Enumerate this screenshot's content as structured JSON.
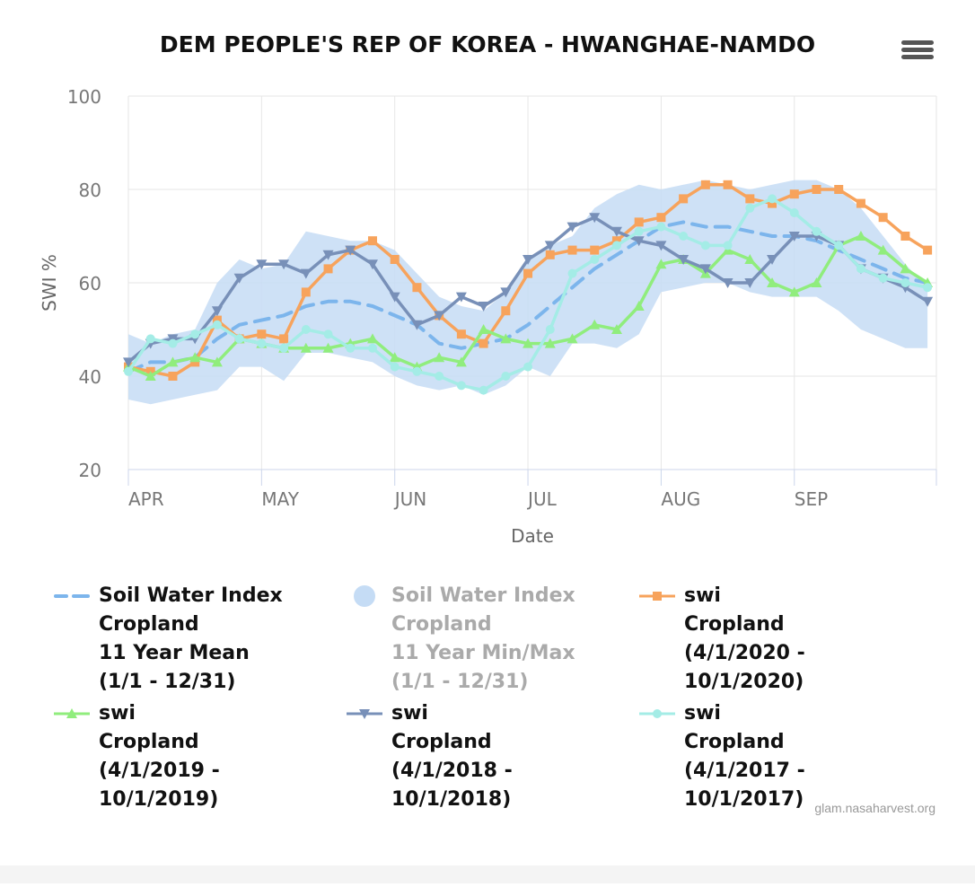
{
  "chart_data": {
    "type": "line",
    "title": "DEM PEOPLE'S REP OF KOREA - HWANGHAE-NAMDO",
    "xlabel": "Date",
    "ylabel": "SWI %",
    "ylim": [
      20,
      100
    ],
    "yticks": [
      "20",
      "40",
      "60",
      "80",
      "100"
    ],
    "xlim": [
      0,
      182
    ],
    "x_ticks": [
      {
        "x": 0,
        "label": "APR"
      },
      {
        "x": 30,
        "label": "MAY"
      },
      {
        "x": 60,
        "label": "JUN"
      },
      {
        "x": 90,
        "label": "JUL"
      },
      {
        "x": 120,
        "label": "AUG"
      },
      {
        "x": 150,
        "label": "SEP"
      }
    ],
    "grid": true,
    "legend_position": "bottom",
    "x": [
      0,
      5,
      10,
      15,
      20,
      25,
      30,
      35,
      40,
      45,
      50,
      55,
      60,
      65,
      70,
      75,
      80,
      85,
      90,
      95,
      100,
      105,
      110,
      115,
      120,
      125,
      130,
      135,
      140,
      145,
      150,
      155,
      160,
      165,
      170,
      175,
      180
    ],
    "band": {
      "name": "Soil Water Index\nCropland\n11 Year Min/Max\n(1/1 - 12/31)",
      "color": "#c5dcf5",
      "upper": [
        49,
        47,
        49,
        50,
        60,
        65,
        63,
        64,
        71,
        70,
        69,
        69,
        67,
        62,
        57,
        55,
        54,
        58,
        65,
        68,
        70,
        76,
        79,
        81,
        80,
        81,
        82,
        81,
        80,
        81,
        82,
        82,
        80,
        76,
        70,
        64,
        59
      ],
      "lower": [
        35,
        34,
        35,
        36,
        37,
        42,
        42,
        39,
        45,
        45,
        44,
        43,
        40,
        38,
        37,
        38,
        36,
        38,
        42,
        40,
        47,
        47,
        46,
        49,
        58,
        59,
        60,
        60,
        58,
        57,
        57,
        57,
        54,
        50,
        48,
        46,
        46
      ]
    },
    "series": [
      {
        "name": "Soil Water Index\nCropland\n11 Year Mean\n(1/1 - 12/31)",
        "color": "#7cb5ec",
        "dash": true,
        "marker": "none",
        "values": [
          41,
          43,
          43,
          44,
          48,
          51,
          52,
          53,
          55,
          56,
          56,
          55,
          53,
          51,
          47,
          46,
          47,
          48,
          51,
          55,
          59,
          63,
          66,
          69,
          72,
          73,
          72,
          72,
          71,
          70,
          70,
          69,
          67,
          65,
          63,
          61,
          60
        ]
      },
      {
        "name": "swi\nCropland\n(4/1/2020 - 10/1/2020)",
        "color": "#f7a35c",
        "dash": false,
        "marker": "square",
        "values": [
          42,
          41,
          40,
          43,
          52,
          48,
          49,
          48,
          58,
          63,
          67,
          69,
          65,
          59,
          53,
          49,
          47,
          54,
          62,
          66,
          67,
          67,
          69,
          73,
          74,
          78,
          81,
          81,
          78,
          77,
          79,
          80,
          80,
          77,
          74,
          70,
          67
        ]
      },
      {
        "name": "swi\nCropland\n(4/1/2019 - 10/1/2019)",
        "color": "#90ed7d",
        "dash": false,
        "marker": "triangle",
        "values": [
          42,
          40,
          43,
          44,
          43,
          48,
          47,
          46,
          46,
          46,
          47,
          48,
          44,
          42,
          44,
          43,
          50,
          48,
          47,
          47,
          48,
          51,
          50,
          55,
          64,
          65,
          62,
          67,
          65,
          60,
          58,
          60,
          68,
          70,
          67,
          63,
          60
        ]
      },
      {
        "name": "swi\nCropland\n(4/1/2018 - 10/1/2018)",
        "color": "#7890b8",
        "dash": false,
        "marker": "triangle-down",
        "values": [
          43,
          47,
          48,
          48,
          54,
          61,
          64,
          64,
          62,
          66,
          67,
          64,
          57,
          51,
          53,
          57,
          55,
          58,
          65,
          68,
          72,
          74,
          71,
          69,
          68,
          65,
          63,
          60,
          60,
          65,
          70,
          70,
          68,
          63,
          61,
          59,
          56
        ]
      },
      {
        "name": "swi\nCropland\n(4/1/2017 - 10/1/2017)",
        "color": "#a4ece6",
        "dash": false,
        "marker": "circle",
        "values": [
          41,
          48,
          47,
          49,
          51,
          48,
          47,
          46,
          50,
          49,
          46,
          46,
          42,
          41,
          40,
          38,
          37,
          40,
          42,
          50,
          62,
          65,
          68,
          71,
          72,
          70,
          68,
          68,
          76,
          78,
          75,
          71,
          68,
          63,
          61,
          60,
          59
        ]
      }
    ]
  },
  "legend": {
    "items": [
      {
        "label": "Soil Water Index\nCropland\n11 Year Mean\n(1/1 - 12/31)",
        "color": "#7cb5ec",
        "symbol": "dash",
        "hidden": false
      },
      {
        "label": "Soil Water Index\nCropland\n11 Year Min/Max\n(1/1 - 12/31)",
        "color": "#c5dcf5",
        "symbol": "circle-fill",
        "hidden": true
      },
      {
        "label": "swi\nCropland\n(4/1/2020 - 10/1/2020)",
        "color": "#f7a35c",
        "symbol": "square",
        "hidden": false
      },
      {
        "label": "swi\nCropland\n(4/1/2019 - 10/1/2019)",
        "color": "#90ed7d",
        "symbol": "triangle",
        "hidden": false
      },
      {
        "label": "swi\nCropland\n(4/1/2018 - 10/1/2018)",
        "color": "#7890b8",
        "symbol": "triangle-down",
        "hidden": false
      },
      {
        "label": "swi\nCropland\n(4/1/2017 - 10/1/2017)",
        "color": "#a4ece6",
        "symbol": "circle",
        "hidden": false
      }
    ]
  },
  "credits": "glam.nasaharvest.org",
  "menu_icon": "hamburger-menu-icon"
}
